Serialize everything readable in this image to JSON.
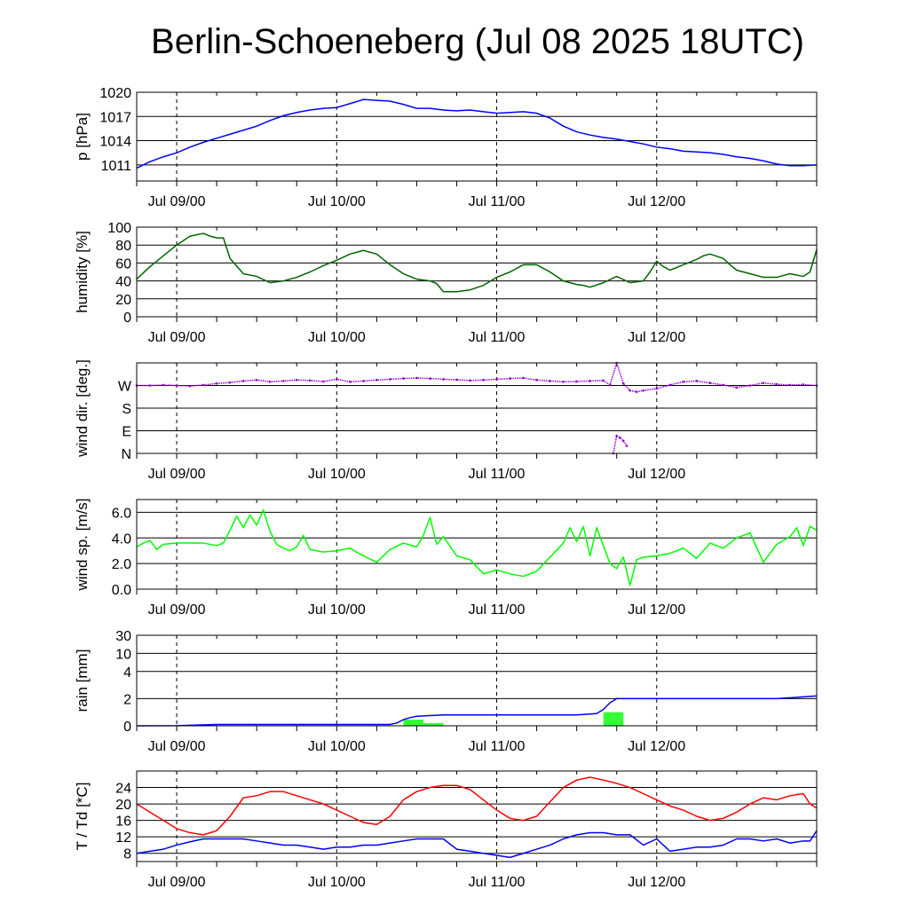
{
  "title": "Berlin-Schoeneberg (Jul 08 2025 18UTC)",
  "colors": {
    "pressure": "#0000ff",
    "humidity": "#006400",
    "wind_dir": "#9400d3",
    "wind_speed": "#00ff00",
    "rain_bar": "#33ff33",
    "rain_line": "#0000ff",
    "temperature": "#ff0000",
    "dewpoint": "#0000ff"
  },
  "chart_data": [
    {
      "id": "pressure",
      "type": "line",
      "ylabel": "p [hPa]",
      "ylim": [
        1009,
        1020
      ],
      "yticks": [
        1011,
        1014,
        1017,
        1020
      ],
      "ytick_labels": [
        "1011",
        "1014",
        "1017",
        "1020"
      ],
      "xlim": [
        0,
        102
      ],
      "xticks": [
        6,
        30,
        54,
        78
      ],
      "xtick_labels": [
        "Jul 09/00",
        "Jul 10/00",
        "Jul 11/00",
        "Jul 12/00"
      ],
      "grid": "horizontal solid at ticks, vertical dashed at midnight",
      "series": [
        {
          "color": "pressure",
          "x": [
            0,
            2,
            4,
            6,
            8,
            10,
            12,
            14,
            16,
            18,
            20,
            22,
            24,
            26,
            28,
            30,
            32,
            34,
            36,
            38,
            40,
            42,
            44,
            46,
            48,
            50,
            52,
            54,
            56,
            58,
            60,
            62,
            64,
            66,
            68,
            70,
            72,
            74,
            76,
            78,
            80,
            82,
            84,
            86,
            88,
            90,
            92,
            94,
            96,
            98,
            100,
            102
          ],
          "y": [
            1010.6,
            1011.4,
            1012.0,
            1012.5,
            1013.2,
            1013.8,
            1014.3,
            1014.8,
            1015.3,
            1015.8,
            1016.5,
            1017.1,
            1017.5,
            1017.8,
            1018.0,
            1018.1,
            1018.6,
            1019.1,
            1019.0,
            1018.9,
            1018.5,
            1018.0,
            1018.0,
            1017.8,
            1017.7,
            1017.8,
            1017.6,
            1017.4,
            1017.5,
            1017.6,
            1017.4,
            1016.8,
            1015.8,
            1015.1,
            1014.7,
            1014.4,
            1014.2,
            1013.9,
            1013.6,
            1013.2,
            1013.0,
            1012.7,
            1012.6,
            1012.5,
            1012.3,
            1012.0,
            1011.8,
            1011.5,
            1011.1,
            1010.9,
            1010.9,
            1011.0
          ]
        }
      ]
    },
    {
      "id": "humidity",
      "type": "line",
      "ylabel": "humidity [%]",
      "ylim": [
        0,
        100
      ],
      "yticks": [
        0,
        20,
        40,
        60,
        80,
        100
      ],
      "ytick_labels": [
        "0",
        "20",
        "40",
        "60",
        "80",
        "100"
      ],
      "xlim": [
        0,
        102
      ],
      "xticks": [
        6,
        30,
        54,
        78
      ],
      "xtick_labels": [
        "Jul 09/00",
        "Jul 10/00",
        "Jul 11/00",
        "Jul 12/00"
      ],
      "series": [
        {
          "color": "humidity",
          "x": [
            0,
            2,
            4,
            6,
            8,
            10,
            11,
            12,
            13,
            14,
            16,
            18,
            20,
            22,
            24,
            26,
            28,
            30,
            32,
            34,
            36,
            38,
            40,
            42,
            44,
            45,
            46,
            48,
            50,
            52,
            54,
            56,
            58,
            60,
            62,
            64,
            66,
            67,
            68,
            70,
            72,
            74,
            76,
            77,
            78,
            79,
            80,
            82,
            84,
            85,
            86,
            88,
            89,
            90,
            92,
            94,
            96,
            98,
            100,
            101,
            102
          ],
          "y": [
            42,
            56,
            68,
            80,
            90,
            93,
            90,
            88,
            88,
            65,
            48,
            45,
            38,
            40,
            44,
            50,
            57,
            63,
            70,
            74,
            70,
            58,
            48,
            42,
            40,
            37,
            28,
            28,
            30,
            35,
            44,
            50,
            58,
            58,
            50,
            40,
            36,
            35,
            33,
            38,
            45,
            38,
            40,
            50,
            62,
            56,
            52,
            58,
            64,
            68,
            70,
            65,
            58,
            52,
            48,
            44,
            44,
            48,
            45,
            50,
            75
          ]
        }
      ]
    },
    {
      "id": "wind_direction",
      "type": "scatter",
      "ylabel": "wind dir. [deg.]",
      "ylim": [
        0,
        360
      ],
      "yticks": [
        0,
        90,
        180,
        270
      ],
      "ytick_labels": [
        "N",
        "E",
        "S",
        "W"
      ],
      "xlim": [
        0,
        102
      ],
      "xticks": [
        6,
        30,
        54,
        78
      ],
      "xtick_labels": [
        "Jul 09/00",
        "Jul 10/00",
        "Jul 11/00",
        "Jul 12/00"
      ],
      "series": [
        {
          "color": "wind_dir",
          "x": [
            0,
            2,
            4,
            6,
            8,
            10,
            12,
            14,
            16,
            18,
            20,
            22,
            24,
            26,
            28,
            30,
            32,
            34,
            36,
            38,
            40,
            42,
            44,
            46,
            48,
            50,
            52,
            54,
            56,
            58,
            60,
            62,
            64,
            66,
            68,
            70,
            71,
            72,
            73,
            74,
            75,
            76,
            78,
            80,
            82,
            84,
            86,
            88,
            90,
            92,
            94,
            96,
            98,
            100,
            102
          ],
          "y": [
            270,
            270,
            272,
            270,
            268,
            272,
            278,
            282,
            288,
            292,
            285,
            288,
            292,
            290,
            286,
            295,
            285,
            288,
            292,
            295,
            298,
            300,
            298,
            295,
            293,
            290,
            292,
            295,
            298,
            300,
            292,
            288,
            285,
            286,
            288,
            290,
            272,
            360,
            278,
            250,
            245,
            250,
            258,
            272,
            285,
            288,
            280,
            272,
            262,
            270,
            280,
            275,
            272,
            274,
            270
          ]
        },
        {
          "color": "wind_dir",
          "x": [
            71.5,
            72,
            72.5,
            73,
            73.5
          ],
          "y": [
            0,
            70,
            62,
            50,
            30
          ]
        }
      ]
    },
    {
      "id": "wind_speed",
      "type": "line",
      "ylabel": "wind sp. [m/s]",
      "ylim": [
        0,
        7
      ],
      "yticks": [
        0,
        2,
        4,
        6
      ],
      "ytick_labels": [
        "0.0",
        "2.0",
        "4.0",
        "6.0"
      ],
      "xlim": [
        0,
        102
      ],
      "xticks": [
        6,
        30,
        54,
        78
      ],
      "xtick_labels": [
        "Jul 09/00",
        "Jul 10/00",
        "Jul 11/00",
        "Jul 12/00"
      ],
      "series": [
        {
          "color": "wind_speed",
          "x": [
            0,
            1,
            2,
            3,
            4,
            6,
            8,
            10,
            12,
            13,
            14,
            15,
            16,
            17,
            18,
            19,
            20,
            21,
            22,
            23,
            24,
            25,
            26,
            28,
            30,
            32,
            34,
            36,
            38,
            40,
            42,
            43,
            44,
            45,
            46,
            48,
            50,
            52,
            54,
            56,
            58,
            60,
            62,
            64,
            65,
            66,
            67,
            68,
            69,
            70,
            71,
            72,
            73,
            74,
            75,
            76,
            78,
            80,
            82,
            84,
            86,
            88,
            90,
            92,
            94,
            96,
            98,
            99,
            100,
            101,
            102
          ],
          "y": [
            3.3,
            3.6,
            3.8,
            3.1,
            3.5,
            3.6,
            3.6,
            3.6,
            3.4,
            3.6,
            4.6,
            5.7,
            4.8,
            5.8,
            5.0,
            6.2,
            4.5,
            3.5,
            3.2,
            3.0,
            3.3,
            4.2,
            3.1,
            2.9,
            3.0,
            3.2,
            2.6,
            2.1,
            3.1,
            3.6,
            3.3,
            4.2,
            5.6,
            3.5,
            4.1,
            2.6,
            2.3,
            1.2,
            1.5,
            1.2,
            1.0,
            1.4,
            2.5,
            3.6,
            4.8,
            3.7,
            4.9,
            2.6,
            4.8,
            3.4,
            2.0,
            1.6,
            2.5,
            0.3,
            2.3,
            2.5,
            2.6,
            2.8,
            3.2,
            2.4,
            3.6,
            3.2,
            4.0,
            4.4,
            2.1,
            3.5,
            4.1,
            4.8,
            3.4,
            4.9,
            4.6
          ]
        }
      ]
    },
    {
      "id": "rain",
      "type": "bar",
      "ylabel": "rain [mm]",
      "ylim": [
        0,
        30
      ],
      "yticks": [
        0,
        2,
        4,
        10,
        30
      ],
      "ytick_labels": [
        "0",
        "2",
        "4",
        "10",
        "30"
      ],
      "xlim": [
        0,
        102
      ],
      "xticks": [
        6,
        30,
        54,
        78
      ],
      "xtick_labels": [
        "Jul 09/00",
        "Jul 10/00",
        "Jul 11/00",
        "Jul 12/00"
      ],
      "bars": {
        "color": "rain_bar",
        "x_start": [
          40,
          43,
          70
        ],
        "x_end": [
          43,
          46,
          73
        ],
        "values": [
          0.45,
          0.2,
          1.0
        ]
      },
      "series": [
        {
          "color": "rain_line",
          "x": [
            0,
            6,
            12,
            20,
            30,
            38,
            39,
            40,
            41,
            42,
            44,
            46,
            48,
            54,
            60,
            66,
            69,
            70,
            71,
            72,
            74,
            78,
            84,
            90,
            96,
            102
          ],
          "y": [
            0,
            0.01,
            0.1,
            0.1,
            0.1,
            0.1,
            0.2,
            0.45,
            0.6,
            0.7,
            0.75,
            0.8,
            0.8,
            0.8,
            0.8,
            0.8,
            0.9,
            1.2,
            1.7,
            2.0,
            2.0,
            2.0,
            2.0,
            2.0,
            2.0,
            2.2
          ]
        }
      ]
    },
    {
      "id": "temperature",
      "type": "line",
      "ylabel": "T / Td [*C]",
      "ylim": [
        6,
        28
      ],
      "yticks": [
        8,
        12,
        16,
        20,
        24
      ],
      "ytick_labels": [
        "8",
        "12",
        "16",
        "20",
        "24"
      ],
      "xlim": [
        0,
        102
      ],
      "xticks": [
        6,
        30,
        54,
        78
      ],
      "xtick_labels": [
        "Jul 09/00",
        "Jul 10/00",
        "Jul 11/00",
        "Jul 12/00"
      ],
      "series": [
        {
          "color": "temperature",
          "x": [
            0,
            2,
            4,
            6,
            8,
            10,
            12,
            14,
            16,
            18,
            20,
            22,
            24,
            26,
            28,
            30,
            32,
            34,
            36,
            38,
            40,
            42,
            44,
            46,
            48,
            50,
            52,
            54,
            56,
            58,
            60,
            62,
            64,
            66,
            68,
            70,
            72,
            74,
            76,
            78,
            80,
            82,
            84,
            86,
            88,
            90,
            92,
            94,
            96,
            98,
            100,
            101,
            102
          ],
          "y": [
            20,
            18,
            16,
            14,
            13,
            12.5,
            13.5,
            17,
            21.5,
            22,
            23,
            23,
            22,
            21,
            20,
            18.5,
            17,
            15.5,
            15,
            17,
            21,
            23,
            24,
            24.5,
            24.5,
            23.5,
            21,
            18.5,
            16.5,
            16,
            17,
            20.5,
            24,
            25.8,
            26.5,
            25.8,
            25,
            24,
            22.5,
            21,
            19.5,
            18.5,
            17,
            16,
            16.5,
            18,
            20,
            21.5,
            21,
            22,
            22.5,
            20,
            19
          ]
        },
        {
          "color": "dewpoint",
          "x": [
            0,
            2,
            4,
            6,
            8,
            10,
            12,
            14,
            16,
            18,
            20,
            22,
            24,
            26,
            28,
            30,
            32,
            34,
            36,
            38,
            40,
            42,
            44,
            46,
            48,
            50,
            52,
            54,
            56,
            58,
            60,
            62,
            64,
            66,
            68,
            70,
            72,
            74,
            76,
            78,
            80,
            82,
            84,
            86,
            88,
            90,
            92,
            94,
            96,
            98,
            100,
            101,
            102
          ],
          "y": [
            8,
            8.5,
            9,
            10,
            10.8,
            11.5,
            11.5,
            11.5,
            11.5,
            11,
            10.5,
            10,
            10,
            9.5,
            9,
            9.5,
            9.5,
            10,
            10,
            10.5,
            11,
            11.5,
            11.5,
            11.5,
            9,
            8.5,
            8,
            7.5,
            7,
            8,
            9,
            10,
            11.5,
            12.5,
            13,
            13,
            12.5,
            12.5,
            10,
            11.5,
            8.5,
            9,
            9.5,
            9.5,
            10,
            11.5,
            11.5,
            11,
            11.5,
            10.5,
            11,
            11,
            13.5
          ]
        }
      ]
    }
  ]
}
